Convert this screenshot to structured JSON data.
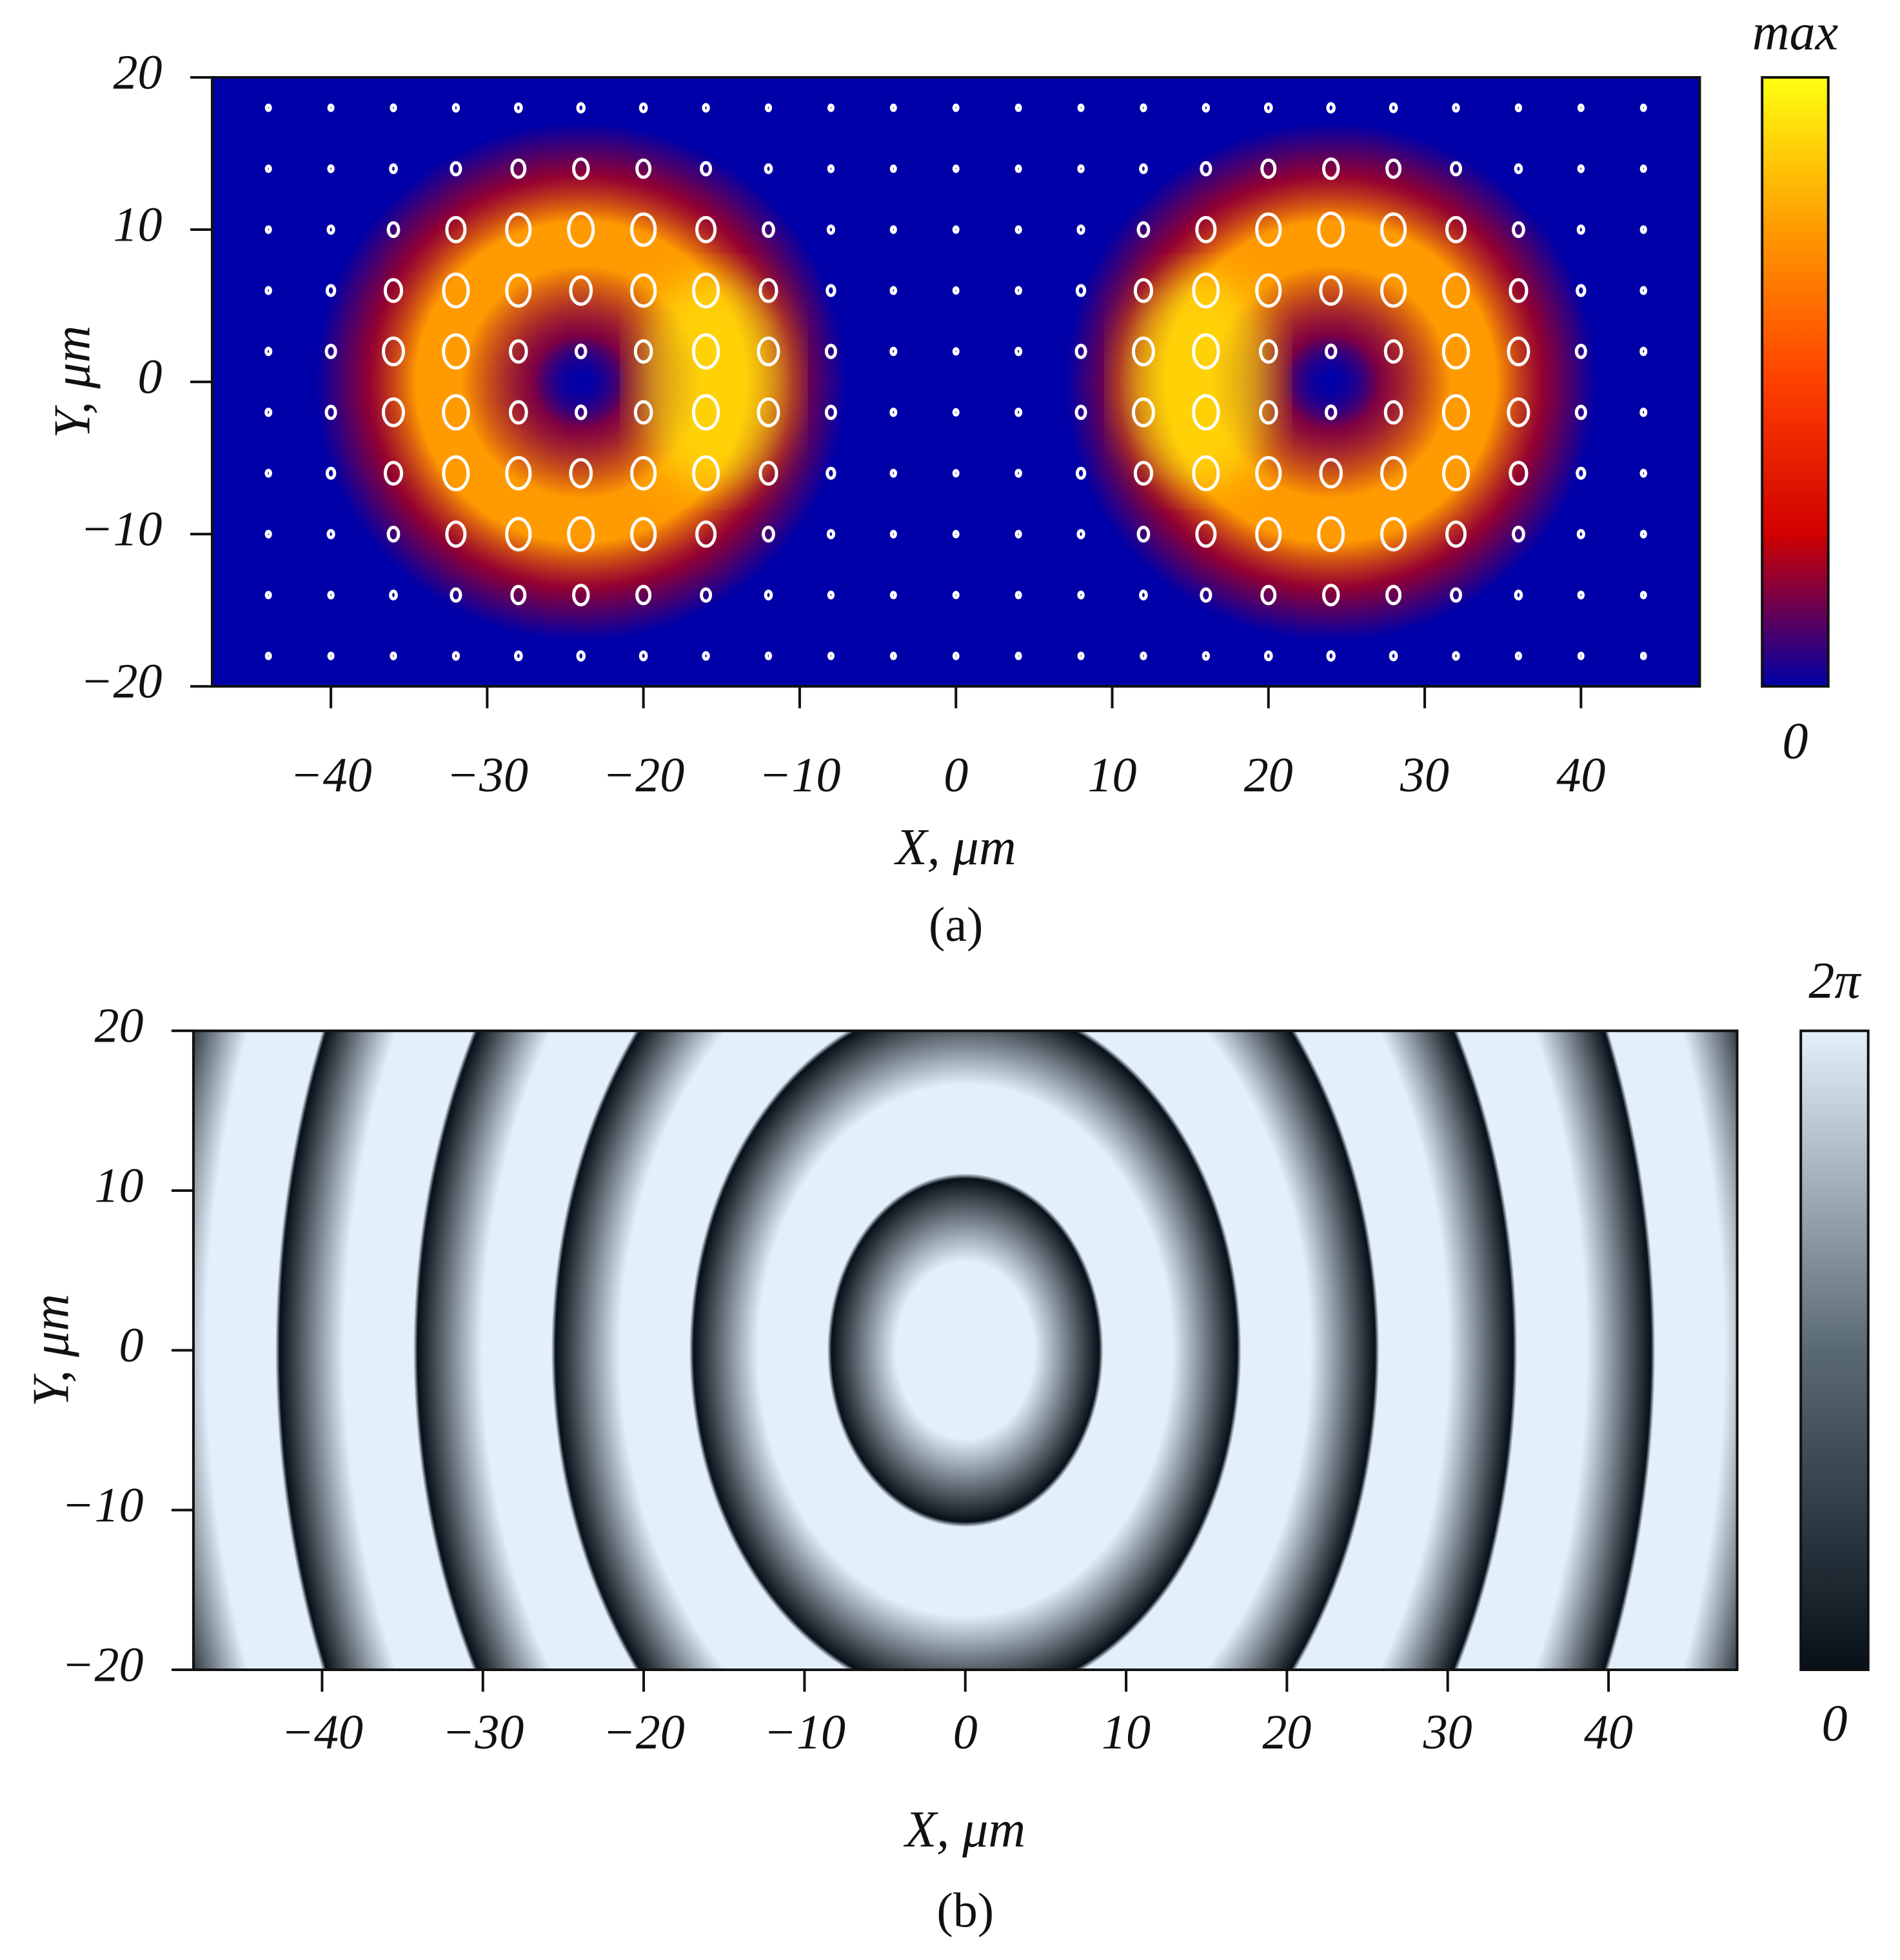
{
  "chart_data": [
    {
      "type": "heatmap",
      "style": "vortex-pair",
      "xlabel": "X, μm",
      "ylabel": "Y, μm",
      "caption": "(a)",
      "xlim": [
        -47.6,
        47.6
      ],
      "ylim": [
        -20,
        20
      ],
      "xticks": [
        {
          "value": -40,
          "label": "−40"
        },
        {
          "value": -30,
          "label": "−30"
        },
        {
          "value": -20,
          "label": "−20"
        },
        {
          "value": -10,
          "label": "−10"
        },
        0,
        10,
        20,
        30,
        40
      ],
      "yticks": [
        {
          "value": -20,
          "label": "−20"
        },
        {
          "value": -10,
          "label": "−10"
        },
        0,
        10,
        20
      ],
      "colorbar": {
        "min_label": "0",
        "max_label": "max",
        "colors": [
          "#0000a8",
          "#d00000",
          "#ff4000",
          "#ff9a00",
          "#ffff10"
        ]
      }
    },
    {
      "type": "heatmap",
      "style": "phase-rings",
      "xlabel": "X, μm",
      "ylabel": "Y, μm",
      "caption": "(b)",
      "xlim": [
        -48,
        48
      ],
      "ylim": [
        -20,
        20
      ],
      "xticks": [
        {
          "value": -40,
          "label": "−40"
        },
        {
          "value": -30,
          "label": "−30"
        },
        {
          "value": -20,
          "label": "−20"
        },
        {
          "value": -10,
          "label": "−10"
        },
        0,
        10,
        20,
        30,
        40
      ],
      "yticks": [
        {
          "value": -20,
          "label": "−20"
        },
        {
          "value": -10,
          "label": "−10"
        },
        0,
        10,
        20
      ],
      "colorbar": {
        "min_label": "0",
        "max_label": "2π",
        "colors": [
          "#071018",
          "#5a6a75",
          "#e3f0fb"
        ]
      }
    }
  ]
}
